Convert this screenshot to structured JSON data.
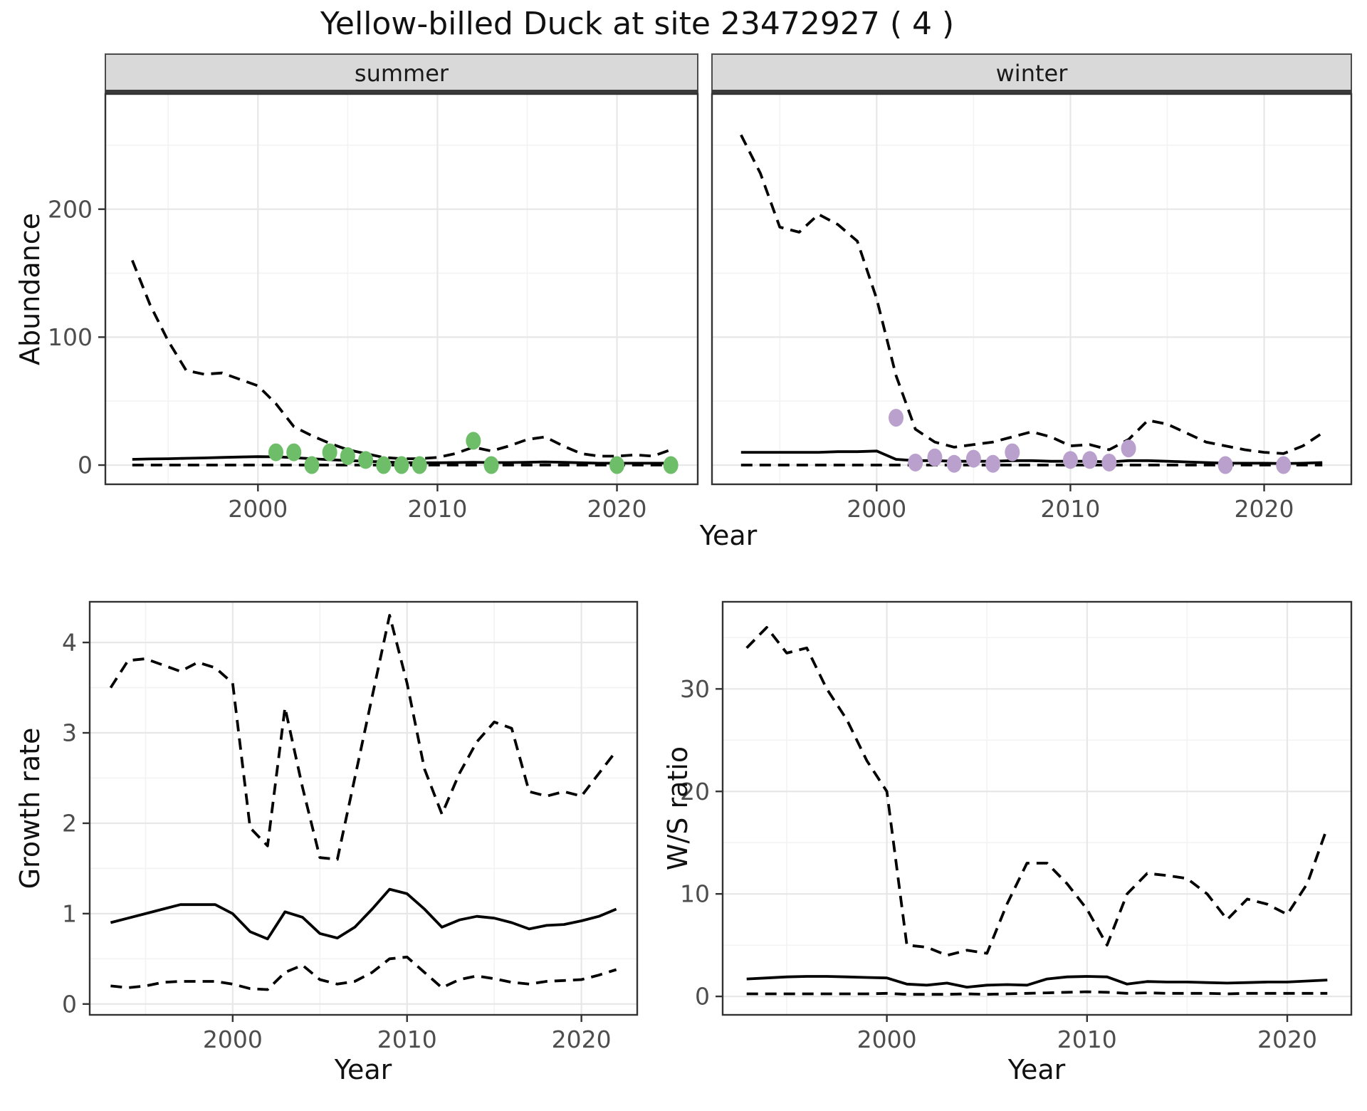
{
  "title": "Yellow-billed Duck at site 23472927 ( 4 )",
  "facets": {
    "summer": "summer",
    "winter": "winter"
  },
  "axis_titles": {
    "x": "Year",
    "abundance": "Abundance",
    "growth": "Growth rate",
    "ws": "W/S ratio"
  },
  "colors": {
    "summer_point": "#6ebe69",
    "winter_point": "#b9a0cd",
    "line": "#000000",
    "grid_major": "#e7e7e7",
    "grid_minor": "#f3f3f3",
    "panel_border": "#333333",
    "strip_bg": "#d9d9d9",
    "strip_border": "#4c4c4c",
    "strip_band": "#3a3a3a",
    "tick_text": "#4d4d4d"
  },
  "chart_data": [
    {
      "id": "abundance_summer",
      "type": "line",
      "title": "summer",
      "xlabel": "Year",
      "ylabel": "Abundance",
      "xlim": [
        1991.5,
        2024.5
      ],
      "ylim": [
        -15,
        290
      ],
      "xticks": [
        2000,
        2010,
        2020
      ],
      "xminor": [
        1995,
        2005,
        2015
      ],
      "yticks": [
        0,
        100,
        200
      ],
      "yminor": [
        50,
        150,
        250
      ],
      "x": [
        1993,
        1994,
        1995,
        1996,
        1997,
        1998,
        1999,
        2000,
        2001,
        2002,
        2003,
        2004,
        2005,
        2006,
        2007,
        2008,
        2009,
        2010,
        2011,
        2012,
        2013,
        2014,
        2015,
        2016,
        2017,
        2018,
        2019,
        2020,
        2021,
        2022,
        2023
      ],
      "series": [
        {
          "name": "upper_ci",
          "style": "dashed",
          "values": [
            160,
            125,
            97,
            74,
            71,
            72,
            67,
            62,
            48,
            30,
            23,
            17,
            12,
            9,
            6,
            5,
            5,
            6,
            9,
            14,
            11,
            15,
            20,
            22,
            15,
            9,
            7,
            7,
            8,
            7,
            12
          ]
        },
        {
          "name": "median",
          "style": "solid",
          "values": [
            4.5,
            4.8,
            5,
            5.3,
            5.6,
            6,
            6.3,
            6.6,
            6.5,
            5.8,
            5,
            4.2,
            3.6,
            3,
            2.5,
            2,
            1.8,
            1.8,
            2,
            2.2,
            2,
            2,
            2.2,
            2.5,
            2.2,
            1.8,
            1.5,
            1.5,
            1.5,
            1.5,
            1.5
          ]
        },
        {
          "name": "lower_ci",
          "style": "dashed",
          "values": [
            0,
            0,
            0,
            0,
            0,
            0,
            0,
            0,
            0,
            0,
            0,
            0,
            0,
            0,
            0,
            0,
            0,
            0,
            0,
            0,
            0,
            0,
            0,
            0,
            0,
            0,
            0,
            0,
            0,
            0,
            0
          ]
        }
      ],
      "points": {
        "x": [
          2001,
          2002,
          2003,
          2004,
          2005,
          2006,
          2007,
          2008,
          2009,
          2012,
          2013,
          2020,
          2023
        ],
        "y": [
          10,
          10,
          0,
          10,
          7,
          4,
          0,
          0,
          0,
          19,
          0,
          0,
          0
        ],
        "color_key": "summer_point"
      }
    },
    {
      "id": "abundance_winter",
      "type": "line",
      "title": "winter",
      "xlabel": "Year",
      "ylabel": "Abundance",
      "xlim": [
        1991.5,
        2024.5
      ],
      "ylim": [
        -15,
        290
      ],
      "xticks": [
        2000,
        2010,
        2020
      ],
      "xminor": [
        1995,
        2005,
        2015
      ],
      "yticks": [
        0,
        100,
        200
      ],
      "yminor": [
        50,
        150,
        250
      ],
      "x": [
        1993,
        1994,
        1995,
        1996,
        1997,
        1998,
        1999,
        2000,
        2001,
        2002,
        2003,
        2004,
        2005,
        2006,
        2007,
        2008,
        2009,
        2010,
        2011,
        2012,
        2013,
        2014,
        2015,
        2016,
        2017,
        2018,
        2019,
        2020,
        2021,
        2022,
        2023
      ],
      "series": [
        {
          "name": "upper_ci",
          "style": "dashed",
          "values": [
            258,
            228,
            186,
            182,
            196,
            188,
            175,
            130,
            70,
            28,
            18,
            14,
            16,
            18,
            22,
            26,
            22,
            15,
            16,
            12,
            20,
            35,
            32,
            25,
            18,
            15,
            12,
            10,
            9,
            15,
            25
          ]
        },
        {
          "name": "median",
          "style": "solid",
          "values": [
            10,
            10,
            10,
            10,
            10,
            10.5,
            10.5,
            11,
            4.5,
            3.5,
            3.5,
            3,
            3,
            3,
            3.5,
            3.5,
            3,
            3,
            3,
            2.5,
            3.5,
            3.5,
            3,
            2.5,
            2,
            1.5,
            1.5,
            1.5,
            1.2,
            1.5,
            2
          ]
        },
        {
          "name": "lower_ci",
          "style": "dashed",
          "values": [
            0,
            0,
            0,
            0,
            0,
            0,
            0,
            0,
            0,
            0,
            0,
            0,
            0,
            0,
            0,
            0,
            0,
            0,
            0,
            0,
            0,
            0,
            0,
            0,
            0,
            0,
            0,
            0,
            0,
            0,
            0
          ]
        }
      ],
      "points": {
        "x": [
          2001,
          2002,
          2003,
          2004,
          2005,
          2006,
          2007,
          2010,
          2011,
          2012,
          2013,
          2018,
          2021
        ],
        "y": [
          37,
          2,
          6,
          1,
          5,
          1,
          10,
          4,
          4,
          2,
          13,
          0,
          0
        ],
        "color_key": "winter_point"
      }
    },
    {
      "id": "growth_rate",
      "type": "line",
      "title": "",
      "xlabel": "Year",
      "ylabel": "Growth rate",
      "xlim": [
        1991.8,
        2023.2
      ],
      "ylim": [
        -0.12,
        4.45
      ],
      "xticks": [
        2000,
        2010,
        2020
      ],
      "xminor": [
        1995,
        2005,
        2015
      ],
      "yticks": [
        0,
        1,
        2,
        3,
        4
      ],
      "yminor": [
        0.5,
        1.5,
        2.5,
        3.5
      ],
      "x": [
        1993,
        1994,
        1995,
        1996,
        1997,
        1998,
        1999,
        2000,
        2001,
        2002,
        2003,
        2004,
        2005,
        2006,
        2007,
        2008,
        2009,
        2010,
        2011,
        2012,
        2013,
        2014,
        2015,
        2016,
        2017,
        2018,
        2019,
        2020,
        2021,
        2022
      ],
      "series": [
        {
          "name": "upper_ci",
          "style": "dashed",
          "values": [
            3.5,
            3.8,
            3.82,
            3.75,
            3.68,
            3.78,
            3.72,
            3.55,
            1.95,
            1.75,
            3.28,
            2.4,
            1.62,
            1.6,
            2.5,
            3.4,
            4.3,
            3.55,
            2.6,
            2.1,
            2.55,
            2.9,
            3.12,
            3.05,
            2.35,
            2.3,
            2.35,
            2.3,
            2.55,
            2.8
          ]
        },
        {
          "name": "median",
          "style": "solid",
          "values": [
            0.9,
            0.95,
            1.0,
            1.05,
            1.1,
            1.1,
            1.1,
            1.0,
            0.8,
            0.72,
            1.02,
            0.96,
            0.78,
            0.73,
            0.85,
            1.05,
            1.27,
            1.22,
            1.05,
            0.85,
            0.93,
            0.97,
            0.95,
            0.9,
            0.83,
            0.87,
            0.88,
            0.92,
            0.97,
            1.05
          ]
        },
        {
          "name": "lower_ci",
          "style": "dashed",
          "values": [
            0.2,
            0.18,
            0.2,
            0.24,
            0.25,
            0.25,
            0.25,
            0.22,
            0.17,
            0.16,
            0.35,
            0.43,
            0.27,
            0.22,
            0.25,
            0.35,
            0.5,
            0.52,
            0.35,
            0.18,
            0.27,
            0.31,
            0.28,
            0.24,
            0.22,
            0.25,
            0.26,
            0.27,
            0.32,
            0.38
          ]
        }
      ],
      "points": null
    },
    {
      "id": "ws_ratio",
      "type": "line",
      "title": "",
      "xlabel": "Year",
      "ylabel": "W/S ratio",
      "xlim": [
        1991.8,
        2023.2
      ],
      "ylim": [
        -1.8,
        38.5
      ],
      "xticks": [
        2000,
        2010,
        2020
      ],
      "xminor": [
        1995,
        2005,
        2015
      ],
      "yticks": [
        0,
        10,
        20,
        30
      ],
      "yminor": [
        5,
        15,
        25,
        35
      ],
      "x": [
        1993,
        1994,
        1995,
        1996,
        1997,
        1998,
        1999,
        2000,
        2001,
        2002,
        2003,
        2004,
        2005,
        2006,
        2007,
        2008,
        2009,
        2010,
        2011,
        2012,
        2013,
        2014,
        2015,
        2016,
        2017,
        2018,
        2019,
        2020,
        2021,
        2022
      ],
      "series": [
        {
          "name": "upper_ci",
          "style": "dashed",
          "values": [
            34,
            36,
            33.5,
            34,
            30,
            27,
            23,
            20,
            5,
            4.8,
            4,
            4.5,
            4.2,
            9,
            13,
            13,
            11,
            8.5,
            5,
            10,
            12,
            11.8,
            11.5,
            10,
            7.5,
            9.5,
            9,
            8,
            11,
            16.5
          ]
        },
        {
          "name": "median",
          "style": "solid",
          "values": [
            1.7,
            1.8,
            1.9,
            1.95,
            1.95,
            1.9,
            1.85,
            1.8,
            1.2,
            1.1,
            1.3,
            0.9,
            1.1,
            1.15,
            1.1,
            1.7,
            1.9,
            1.95,
            1.9,
            1.2,
            1.45,
            1.4,
            1.4,
            1.35,
            1.3,
            1.35,
            1.4,
            1.4,
            1.5,
            1.6
          ]
        },
        {
          "name": "lower_ci",
          "style": "dashed",
          "values": [
            0.25,
            0.25,
            0.25,
            0.25,
            0.25,
            0.25,
            0.25,
            0.3,
            0.2,
            0.2,
            0.2,
            0.25,
            0.2,
            0.25,
            0.3,
            0.35,
            0.4,
            0.45,
            0.4,
            0.3,
            0.35,
            0.3,
            0.3,
            0.3,
            0.25,
            0.3,
            0.3,
            0.3,
            0.3,
            0.3
          ]
        }
      ],
      "points": null
    }
  ]
}
